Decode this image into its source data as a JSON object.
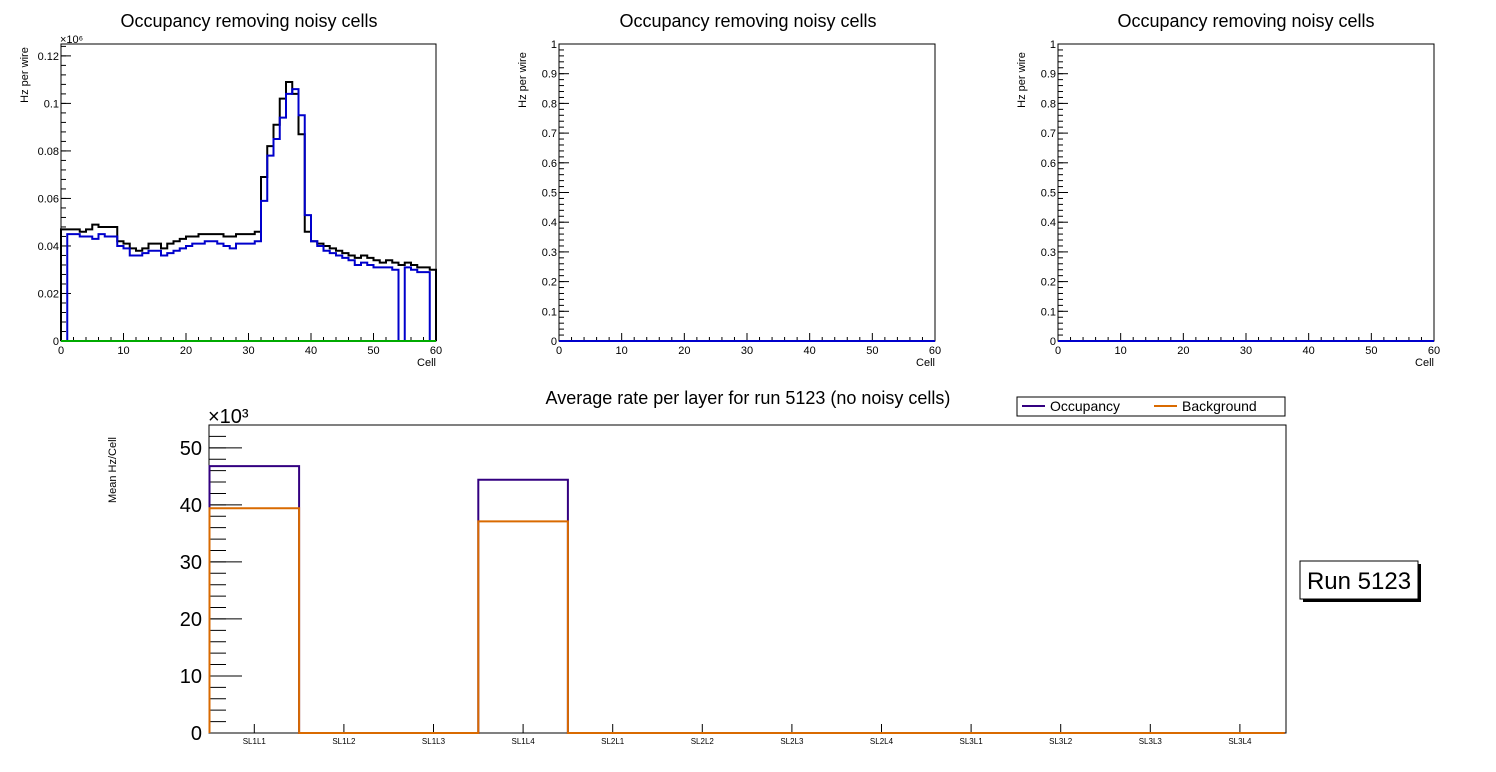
{
  "chart_data": [
    {
      "type": "step",
      "title": "Occupancy removing noisy cells",
      "xlabel": "Cell",
      "ylabel": "Hz per wire",
      "y_exponent_label": "×10⁶",
      "xlim": [
        0,
        60
      ],
      "ylim": [
        0,
        0.125
      ],
      "xticks": [
        "0",
        "10",
        "20",
        "30",
        "40",
        "50",
        "60"
      ],
      "yticks": [
        "0",
        "0.02",
        "0.04",
        "0.06",
        "0.08",
        "0.1",
        "0.12"
      ],
      "series": [
        {
          "name": "black",
          "color": "#000000",
          "values": [
            0.047,
            0.047,
            0.047,
            0.046,
            0.047,
            0.049,
            0.048,
            0.048,
            0.048,
            0.042,
            0.041,
            0.039,
            0.038,
            0.039,
            0.041,
            0.041,
            0.039,
            0.041,
            0.042,
            0.043,
            0.044,
            0.044,
            0.045,
            0.045,
            0.045,
            0.045,
            0.044,
            0.044,
            0.045,
            0.045,
            0.045,
            0.046,
            0.069,
            0.082,
            0.091,
            0.102,
            0.109,
            0.104,
            0.087,
            0.046,
            0.042,
            0.041,
            0.04,
            0.039,
            0.038,
            0.037,
            0.036,
            0.035,
            0.036,
            0.035,
            0.034,
            0.033,
            0.034,
            0.033,
            0.032,
            0.033,
            0.032,
            0.031,
            0.031,
            0.03
          ]
        },
        {
          "name": "blue",
          "color": "#0000cc",
          "values": [
            0.0,
            0.045,
            0.045,
            0.044,
            0.044,
            0.043,
            0.045,
            0.044,
            0.044,
            0.04,
            0.039,
            0.036,
            0.036,
            0.037,
            0.038,
            0.038,
            0.036,
            0.037,
            0.038,
            0.039,
            0.04,
            0.041,
            0.041,
            0.042,
            0.042,
            0.041,
            0.04,
            0.039,
            0.041,
            0.041,
            0.041,
            0.042,
            0.059,
            0.078,
            0.085,
            0.094,
            0.104,
            0.106,
            0.095,
            0.053,
            0.042,
            0.04,
            0.038,
            0.037,
            0.036,
            0.035,
            0.034,
            0.032,
            0.033,
            0.032,
            0.031,
            0.031,
            0.031,
            0.03,
            0.0,
            0.031,
            0.03,
            0.029,
            0.029,
            0.0
          ]
        },
        {
          "name": "green",
          "color": "#00aa00",
          "values": [
            0.0
          ]
        }
      ]
    },
    {
      "type": "step",
      "title": "Occupancy removing noisy cells",
      "xlabel": "Cell",
      "ylabel": "Hz per wire",
      "xlim": [
        0,
        60
      ],
      "ylim": [
        0,
        1
      ],
      "xticks": [
        "0",
        "10",
        "20",
        "30",
        "40",
        "50",
        "60"
      ],
      "yticks": [
        "0",
        "0.1",
        "0.2",
        "0.3",
        "0.4",
        "0.5",
        "0.6",
        "0.7",
        "0.8",
        "0.9",
        "1"
      ],
      "series": [
        {
          "name": "blue",
          "color": "#0000cc",
          "values": [
            0.0
          ]
        }
      ]
    },
    {
      "type": "step",
      "title": "Occupancy removing noisy cells",
      "xlabel": "Cell",
      "ylabel": "Hz per wire",
      "xlim": [
        0,
        60
      ],
      "ylim": [
        0,
        1
      ],
      "xticks": [
        "0",
        "10",
        "20",
        "30",
        "40",
        "50",
        "60"
      ],
      "yticks": [
        "0",
        "0.1",
        "0.2",
        "0.3",
        "0.4",
        "0.5",
        "0.6",
        "0.7",
        "0.8",
        "0.9",
        "1"
      ],
      "series": [
        {
          "name": "blue",
          "color": "#0000cc",
          "values": [
            0.0
          ]
        }
      ]
    },
    {
      "type": "bar",
      "title": "Average rate per layer for run 5123 (no noisy cells)",
      "ylabel": "Mean Hz/Cell",
      "y_exponent_label": "×10³",
      "ylim": [
        0,
        54
      ],
      "yticks": [
        "0",
        "10",
        "20",
        "30",
        "40",
        "50"
      ],
      "categories": [
        "SL1L1",
        "SL1L2",
        "SL1L3",
        "SL1L4",
        "SL2L1",
        "SL2L2",
        "SL2L3",
        "SL2L4",
        "SL3L1",
        "SL3L2",
        "SL3L3",
        "SL3L4"
      ],
      "series": [
        {
          "name": "Occupancy",
          "color": "#330080",
          "values": [
            46.8,
            0,
            0,
            44.4,
            0,
            0,
            0,
            0,
            0,
            0,
            0,
            0
          ]
        },
        {
          "name": "Background",
          "color": "#d96a00",
          "values": [
            39.4,
            0,
            0,
            37.1,
            0,
            0,
            0,
            0,
            0,
            0,
            0,
            0
          ]
        }
      ],
      "legend": [
        "Occupancy",
        "Background"
      ],
      "run_label": "Run 5123"
    }
  ]
}
